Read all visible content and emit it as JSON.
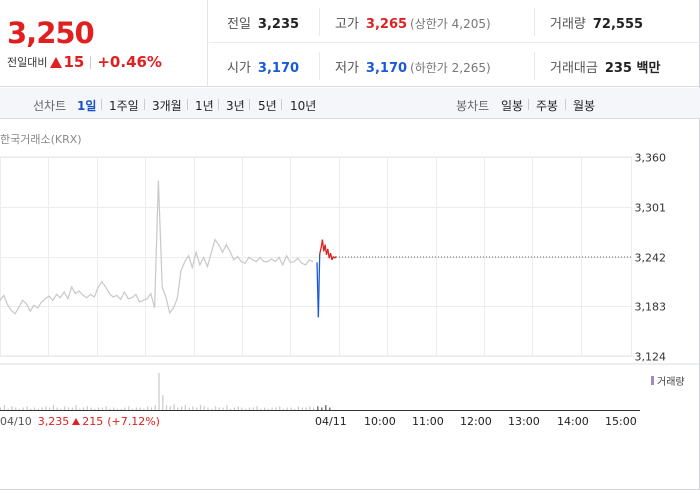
{
  "header": {
    "price": "3,250",
    "change_label": "전일대비",
    "change_value": "15",
    "change_pct": "+0.46%",
    "stats": {
      "prev_close": {
        "label": "전일",
        "value": "3,235"
      },
      "high": {
        "label": "고가",
        "value": "3,265",
        "limit_label": "(상한가 4,205)"
      },
      "volume": {
        "label": "거래량",
        "value": "72,555"
      },
      "open": {
        "label": "시가",
        "value": "3,170"
      },
      "low": {
        "label": "저가",
        "value": "3,170",
        "limit_label": "(하한가 2,265)"
      },
      "amount": {
        "label": "거래대금",
        "value": "235 백만"
      }
    },
    "colors": {
      "up": "#e02020",
      "down": "#1a5ad7"
    }
  },
  "tabs": {
    "line_title": "선차트",
    "line_tabs": [
      "1일",
      "1주일",
      "3개월",
      "1년",
      "3년",
      "5년",
      "10년"
    ],
    "active_line_tab": "1일",
    "candle_title": "봉차트",
    "candle_tabs": [
      "일봉",
      "주봉",
      "월봉"
    ]
  },
  "chart": {
    "source": "한국거래소(KRX)",
    "volume_legend": "거래량",
    "prev_day": {
      "date": "04/10",
      "close": "3,235",
      "change": "215",
      "pct": "(+7.12%)"
    },
    "x_labels": [
      "04/11",
      "10:00",
      "11:00",
      "12:00",
      "13:00",
      "14:00",
      "15:00"
    ]
  },
  "chart_data": {
    "type": "line",
    "y_ticks": [
      "3,360",
      "3,301",
      "3,242",
      "3,183",
      "3,124"
    ],
    "ylim": [
      3124,
      3360
    ],
    "reference_line": 3235,
    "series": [
      {
        "values": [
          3190,
          3196,
          3185,
          3178,
          3174,
          3182,
          3190,
          3186,
          3177,
          3184,
          3181,
          3188,
          3192,
          3195,
          3190,
          3197,
          3193,
          3200,
          3192,
          3206,
          3198,
          3201,
          3196,
          3193,
          3197,
          3194,
          3205,
          3212,
          3206,
          3198,
          3194,
          3196,
          3191,
          3200,
          3192,
          3193,
          3197,
          3188,
          3190,
          3192,
          3198,
          3181,
          3332,
          3206,
          3194,
          3175,
          3181,
          3192,
          3225,
          3236,
          3243,
          3229,
          3247,
          3232,
          3241,
          3230,
          3246,
          3262,
          3256,
          3247,
          3256,
          3248,
          3238,
          3242,
          3236,
          3234,
          3241,
          3238,
          3236,
          3241,
          3236,
          3236,
          3239,
          3236,
          3241,
          3232,
          3243,
          3235,
          3236,
          3240,
          3234,
          3232,
          3238,
          3236
        ],
        "color": "#c8c8c8"
      },
      {
        "values": [
          3235,
          3170,
          3245,
          3252,
          3262,
          3248,
          3256,
          3244,
          3251,
          3240,
          3246,
          3238,
          3242,
          3240,
          3242
        ],
        "color_up": "#e02020",
        "color_down": "#1a5ad7"
      }
    ],
    "volume_values": [
      2,
      4,
      1,
      3,
      2,
      1,
      2,
      3,
      1,
      2,
      1,
      2,
      3,
      2,
      4,
      2,
      1,
      3,
      2,
      2,
      4,
      1,
      2,
      3,
      2,
      1,
      2,
      2,
      3,
      1,
      2,
      1,
      1,
      2,
      3,
      1,
      2,
      2,
      1,
      3,
      2,
      4,
      30,
      12,
      4,
      3,
      5,
      2,
      3,
      4,
      2,
      3,
      2,
      4,
      3,
      2,
      1,
      3,
      2,
      2,
      4,
      1,
      2,
      3,
      2,
      1,
      2,
      2,
      3,
      1,
      2,
      1,
      2,
      2,
      3,
      1,
      2,
      2,
      1,
      3,
      2,
      2,
      3,
      2
    ]
  }
}
